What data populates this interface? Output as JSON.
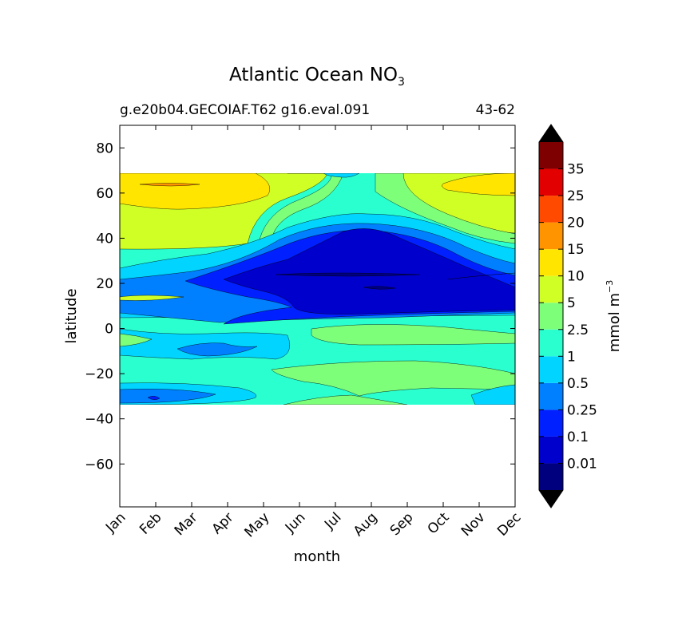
{
  "chart_data": {
    "type": "heatmap",
    "title": "Atlantic Ocean NO",
    "title_subscript": "3",
    "subtitle_left": "g.e20b04.GECOIAF.T62 g16.eval.091",
    "subtitle_right": "43-62",
    "xlabel": "month",
    "ylabel": "latitude",
    "x_categories": [
      "Jan",
      "Feb",
      "Mar",
      "Apr",
      "May",
      "Jun",
      "Jul",
      "Aug",
      "Sep",
      "Oct",
      "Nov",
      "Dec"
    ],
    "y_ticks": [
      {
        "value": 80,
        "label": "80"
      },
      {
        "value": 60,
        "label": "60"
      },
      {
        "value": 40,
        "label": "40"
      },
      {
        "value": 20,
        "label": "20"
      },
      {
        "value": 0,
        "label": "0"
      },
      {
        "value": -20,
        "label": "−20"
      },
      {
        "value": -40,
        "label": "−40"
      },
      {
        "value": -60,
        "label": "−60"
      }
    ],
    "ylim": [
      -79,
      90
    ],
    "data_lat_range": [
      -34,
      68
    ],
    "colorbar": {
      "label": "mmol m",
      "label_superscript": "−3",
      "levels": [
        "0.01",
        "0.1",
        "0.25",
        "0.5",
        "1",
        "2.5",
        "5",
        "10",
        "15",
        "20",
        "25",
        "35"
      ],
      "colors": [
        "#00007f",
        "#0000cc",
        "#0020ff",
        "#0080ff",
        "#00d4ff",
        "#2affd0",
        "#7dff7a",
        "#d0ff26",
        "#ffe500",
        "#ff9400",
        "#ff4a00",
        "#e30000",
        "#7f0000"
      ],
      "under_color": "#000000",
      "over_color": "#000000"
    },
    "background_color": "#2affd0"
  }
}
